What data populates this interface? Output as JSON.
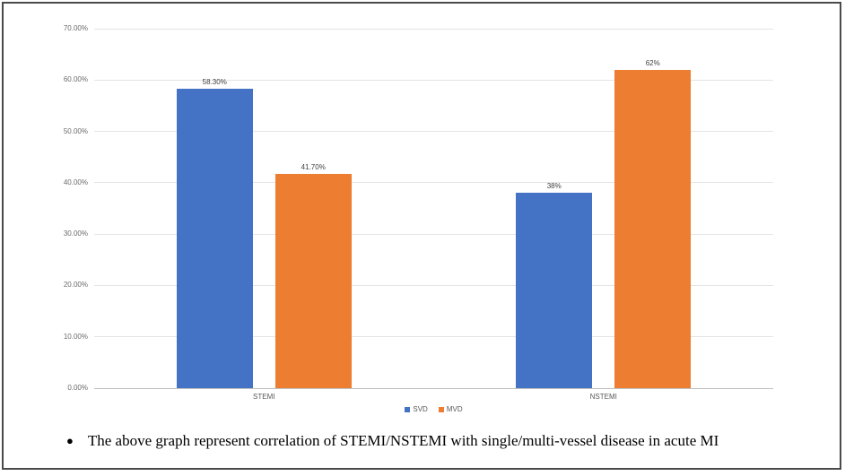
{
  "chart_data": {
    "type": "bar",
    "title": "",
    "xlabel": "",
    "ylabel": "",
    "categories": [
      "STEMI",
      "NSTEMI"
    ],
    "series": [
      {
        "name": "SVD",
        "color": "#4472C4",
        "values": [
          58.3,
          38
        ],
        "labels": [
          "58.30%",
          "38%"
        ]
      },
      {
        "name": "MVD",
        "color": "#ED7D31",
        "values": [
          41.7,
          62
        ],
        "labels": [
          "41.70%",
          "62%"
        ]
      }
    ],
    "ylim": [
      0,
      70
    ],
    "y_ticks": [
      {
        "value": 0,
        "label": "0.00%"
      },
      {
        "value": 10,
        "label": "10.00%"
      },
      {
        "value": 20,
        "label": "20.00%"
      },
      {
        "value": 30,
        "label": "30.00%"
      },
      {
        "value": 40,
        "label": "40.00%"
      },
      {
        "value": 50,
        "label": "50.00%"
      },
      {
        "value": 60,
        "label": "60.00%"
      },
      {
        "value": 70,
        "label": "70.00%"
      }
    ],
    "grid": true,
    "legend_position": "bottom"
  },
  "colors": {
    "gridline": "#e4e4e4",
    "axis_line": "#bfbfbf",
    "tick_text": "#6a6a6a",
    "data_label_text": "#3f3f3f",
    "frame_border": "#4a4a4a"
  },
  "caption": {
    "bullet": "●",
    "text": "The above graph represent correlation of STEMI/NSTEMI with single/multi-vessel disease in acute MI"
  }
}
